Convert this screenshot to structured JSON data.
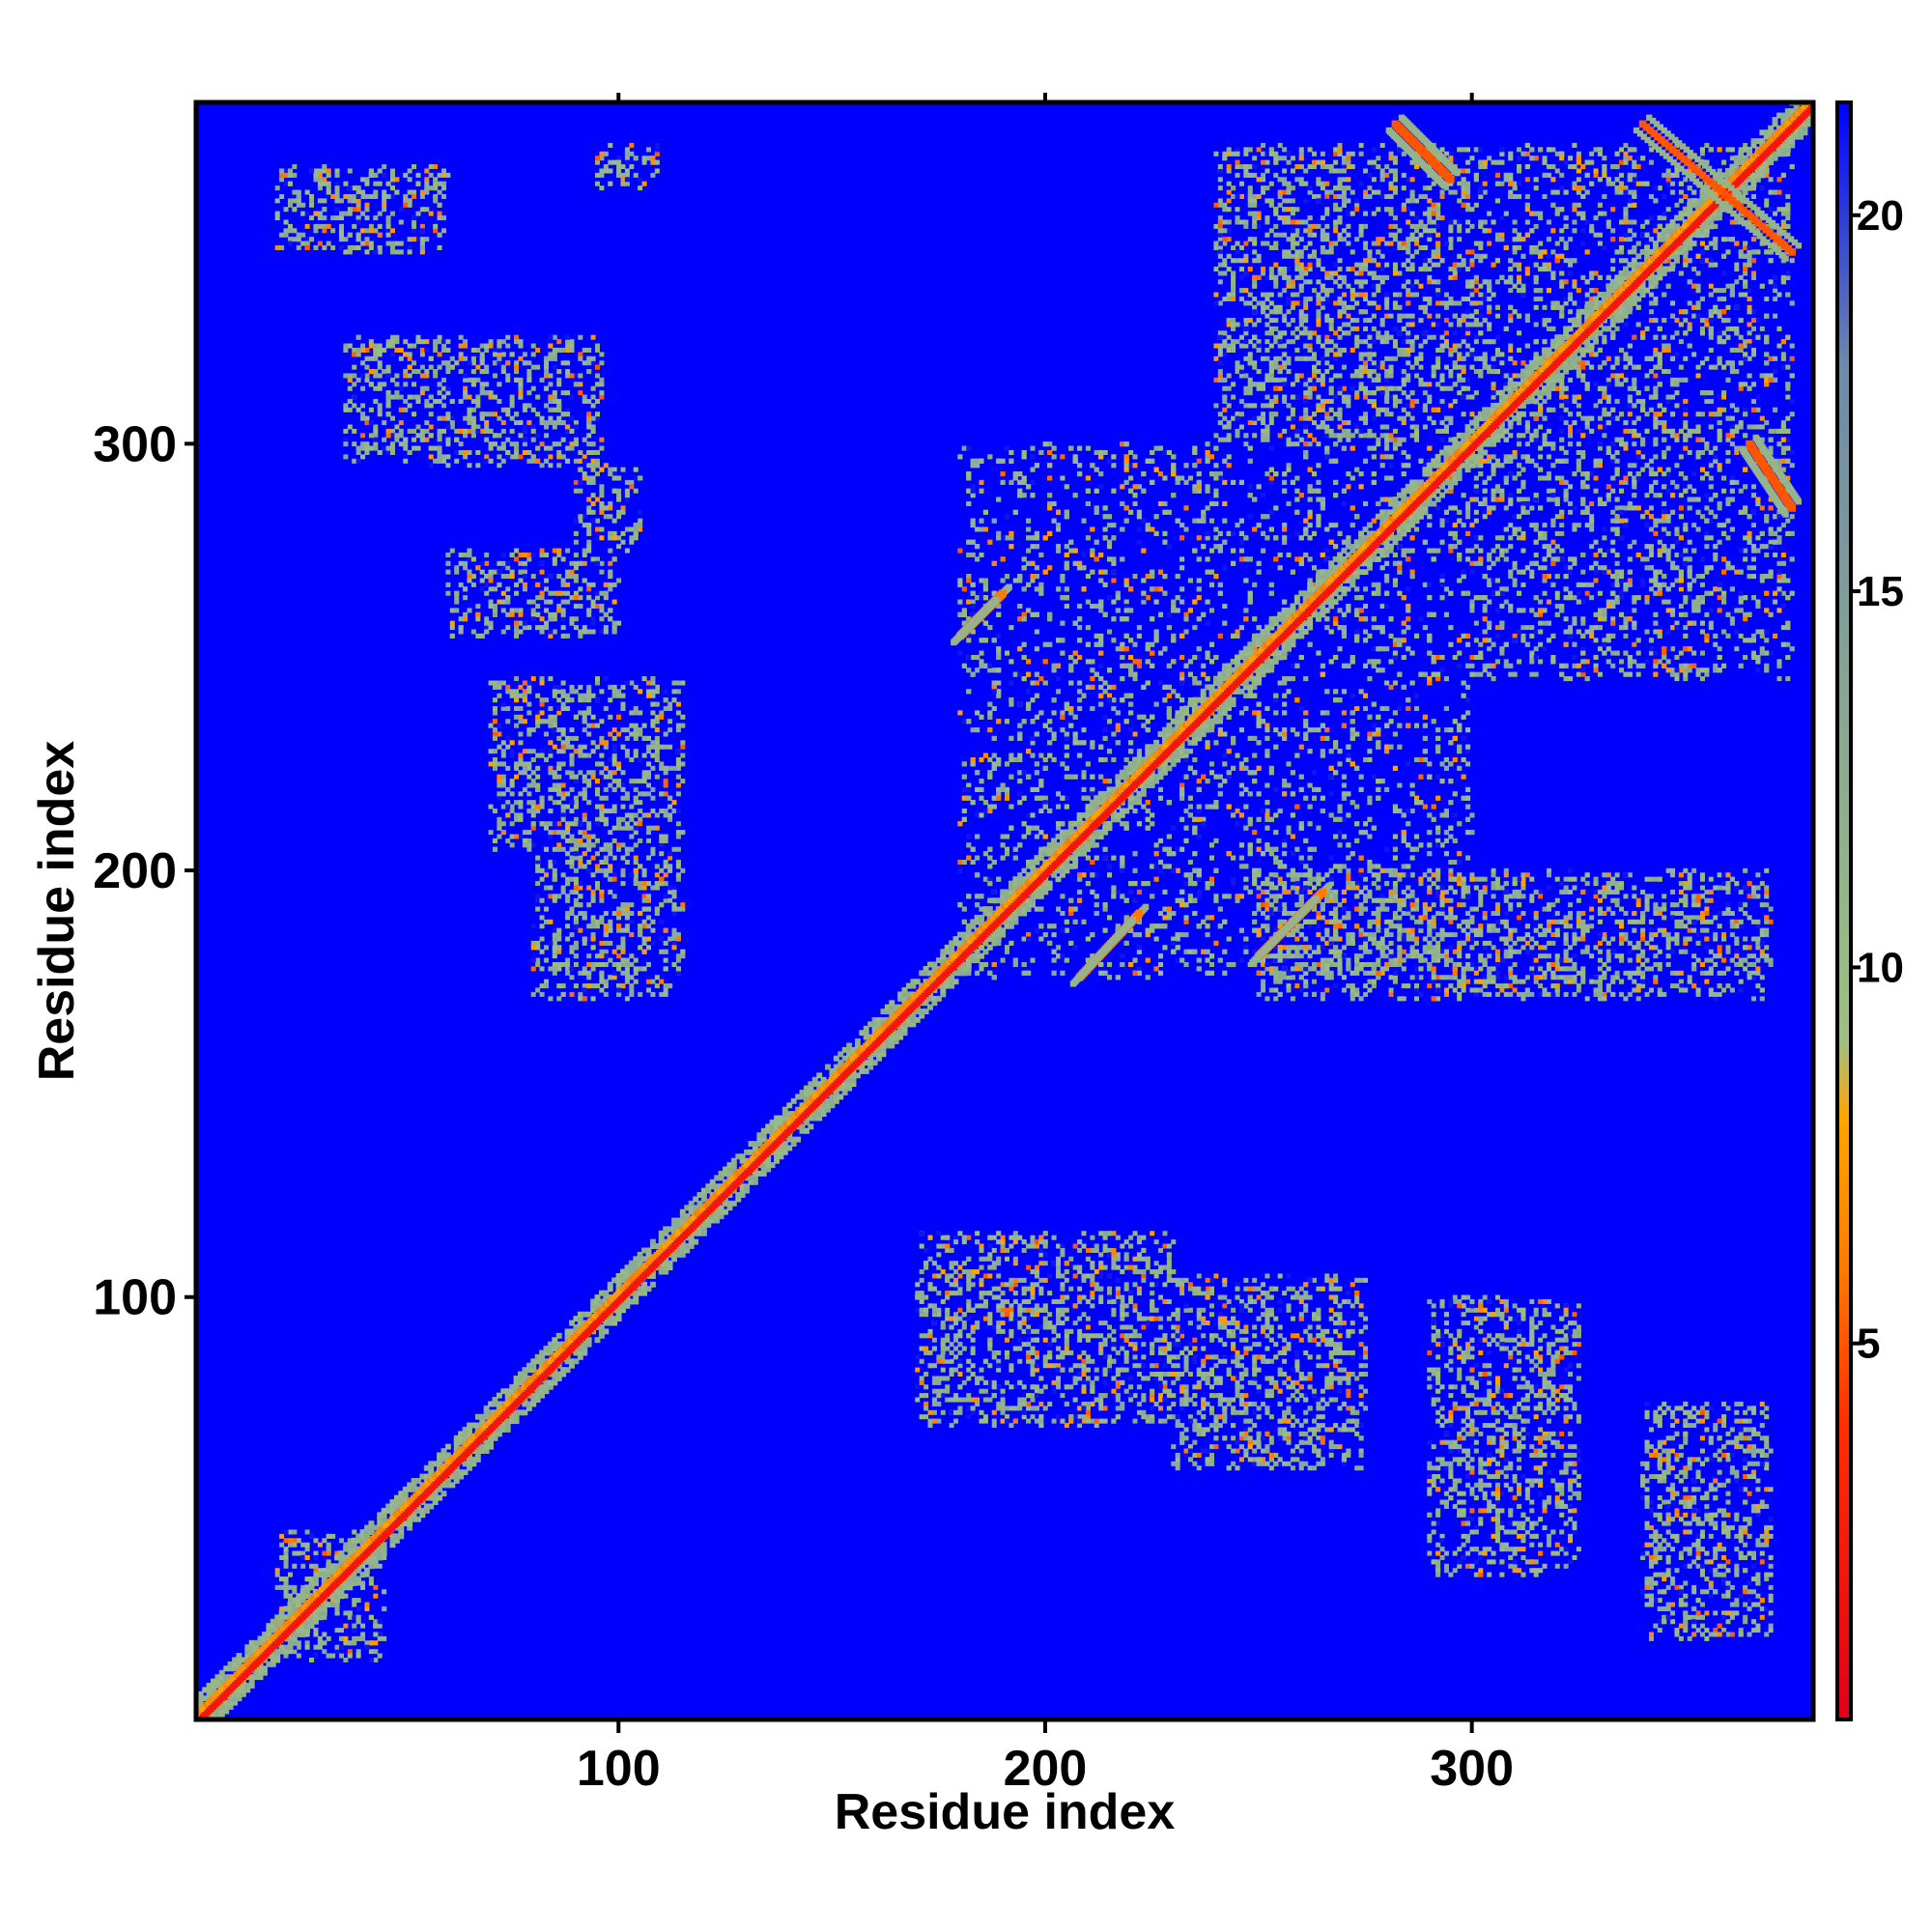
{
  "chart_data": {
    "type": "heatmap",
    "title": "",
    "xlabel": "Residue index",
    "ylabel": "Residue index",
    "xlim": [
      1,
      380
    ],
    "ylim": [
      1,
      380
    ],
    "x_ticks": [
      100,
      200,
      300
    ],
    "y_ticks": [
      100,
      200,
      300
    ],
    "x_tick_labels": [
      "100",
      "200",
      "300"
    ],
    "y_tick_labels": [
      "100",
      "200",
      "300"
    ],
    "colorbar": {
      "range": [
        0,
        21.5
      ],
      "ticks": [
        5,
        10,
        15,
        20
      ],
      "tick_labels": [
        "5",
        "10",
        "15",
        "20"
      ],
      "stops": [
        {
          "value": 0,
          "color": "#e0001a"
        },
        {
          "value": 4,
          "color": "#ff3000"
        },
        {
          "value": 6,
          "color": "#ff7a00"
        },
        {
          "value": 8,
          "color": "#ffa500"
        },
        {
          "value": 9,
          "color": "#9fbf84"
        },
        {
          "value": 13,
          "color": "#8aa991"
        },
        {
          "value": 18,
          "color": "#6f8aa8"
        },
        {
          "value": 21.5,
          "color": "#0000ff"
        }
      ]
    },
    "background_value": 21.5,
    "diagonal": {
      "core_value": 2,
      "halo_value": 11
    },
    "contact_regions": [
      {
        "x": [
          20,
          60
        ],
        "y": [
          345,
          365
        ]
      },
      {
        "x": [
          36,
          96
        ],
        "y": [
          295,
          325
        ]
      },
      {
        "x": [
          60,
          100
        ],
        "y": [
          255,
          275
        ]
      },
      {
        "x": [
          70,
          115
        ],
        "y": [
          205,
          245
        ]
      },
      {
        "x": [
          80,
          115
        ],
        "y": [
          170,
          205
        ]
      },
      {
        "x": [
          90,
          105
        ],
        "y": [
          275,
          295
        ]
      },
      {
        "x": [
          95,
          110
        ],
        "y": [
          360,
          370
        ]
      },
      {
        "x": [
          180,
          300
        ],
        "y": [
          175,
          300
        ]
      },
      {
        "x": [
          240,
          300
        ],
        "y": [
          300,
          370
        ]
      },
      {
        "x": [
          300,
          375
        ],
        "y": [
          245,
          370
        ]
      },
      {
        "x": [
          250,
          370
        ],
        "y": [
          170,
          200
        ]
      },
      {
        "x": [
          170,
          230
        ],
        "y": [
          70,
          115
        ]
      },
      {
        "x": [
          230,
          275
        ],
        "y": [
          60,
          105
        ]
      },
      {
        "x": [
          290,
          325
        ],
        "y": [
          35,
          100
        ]
      },
      {
        "x": [
          340,
          370
        ],
        "y": [
          20,
          75
        ]
      },
      {
        "x": [
          20,
          45
        ],
        "y": [
          15,
          45
        ]
      }
    ],
    "antidiagonal_segments": [
      {
        "x": [
          282,
          295
        ],
        "y": [
          375,
          362
        ],
        "value": 5
      },
      {
        "x": [
          340,
          375
        ],
        "y": [
          375,
          345
        ],
        "value": 5
      },
      {
        "x": [
          365,
          375
        ],
        "y": [
          300,
          285
        ],
        "value": 5
      },
      {
        "x": [
          180,
          190
        ],
        "y": [
          255,
          265
        ],
        "value": 6
      },
      {
        "x": [
          208,
          222
        ],
        "y": [
          175,
          190
        ],
        "value": 6
      },
      {
        "x": [
          250,
          265
        ],
        "y": [
          180,
          195
        ],
        "value": 6
      }
    ],
    "grid": false,
    "legend": "colorbar-right"
  }
}
